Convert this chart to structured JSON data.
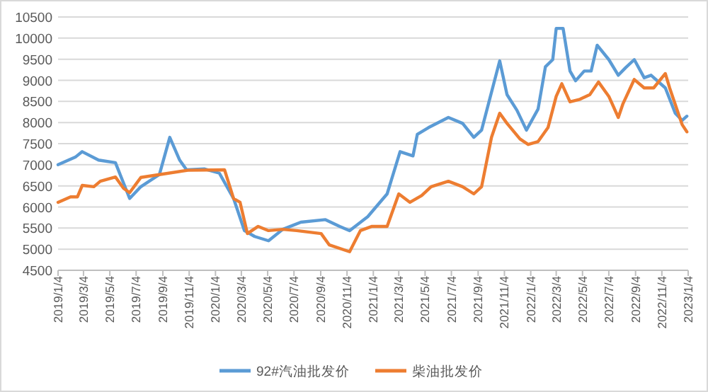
{
  "chart_data": {
    "type": "line",
    "x": [
      "2019-01-04",
      "2019-02-13",
      "2019-03-01",
      "2019-04-08",
      "2019-05-17",
      "2019-06-19",
      "2019-07-15",
      "2019-08-27",
      "2019-09-20",
      "2019-10-13",
      "2019-10-29",
      "2019-12-10",
      "2020-01-13",
      "2020-02-15",
      "2020-03-11",
      "2020-04-04",
      "2020-05-06",
      "2020-06-08",
      "2020-07-20",
      "2020-09-15",
      "2020-10-18",
      "2020-11-10",
      "2020-12-22",
      "2021-02-05",
      "2021-03-07",
      "2021-04-06",
      "2021-04-16",
      "2021-05-12",
      "2021-06-27",
      "2021-07-30",
      "2021-08-25",
      "2021-09-12",
      "2021-10-24",
      "2021-11-10",
      "2021-12-03",
      "2021-12-25",
      "2022-01-21",
      "2022-02-07",
      "2022-02-24",
      "2022-03-04",
      "2022-03-20",
      "2022-04-05",
      "2022-04-18",
      "2022-05-08",
      "2022-05-24",
      "2022-06-07",
      "2022-07-04",
      "2022-07-26",
      "2022-08-12",
      "2022-09-01",
      "2022-09-24",
      "2022-10-10",
      "2022-11-12",
      "2022-12-05",
      "2022-12-21",
      "2023-01-01"
    ],
    "series": [
      {
        "name": "92#汽油批发价",
        "color": "#5b9bd5",
        "values": [
          7000,
          7180,
          7310,
          7110,
          7050,
          6200,
          6480,
          6770,
          7650,
          7110,
          6880,
          6900,
          6800,
          6200,
          5440,
          5300,
          5200,
          5470,
          5640,
          5700,
          5540,
          5440,
          5770,
          6310,
          7310,
          7210,
          7720,
          7880,
          8120,
          7980,
          7650,
          7820,
          9460,
          8660,
          8290,
          7820,
          8320,
          9320,
          9490,
          10230,
          10230,
          9220,
          8990,
          9220,
          9220,
          9830,
          9490,
          9120,
          9300,
          9490,
          9060,
          9120,
          8820,
          8220,
          8050,
          8150
        ]
      },
      {
        "name": "柴油批发价",
        "color": "#ed7d31",
        "x": [
          "2019-01-04",
          "2019-02-02",
          "2019-02-18",
          "2019-03-01",
          "2019-03-28",
          "2019-04-12",
          "2019-05-17",
          "2019-06-05",
          "2019-06-19",
          "2019-07-15",
          "2019-11-01",
          "2020-01-25",
          "2020-02-15",
          "2020-03-01",
          "2020-03-18",
          "2020-04-12",
          "2020-05-06",
          "2020-06-08",
          "2020-07-10",
          "2020-09-05",
          "2020-09-24",
          "2020-11-10",
          "2020-12-05",
          "2021-01-01",
          "2021-02-05",
          "2021-03-04",
          "2021-03-30",
          "2021-04-26",
          "2021-05-18",
          "2021-06-27",
          "2021-07-30",
          "2021-08-25",
          "2021-09-12",
          "2021-10-05",
          "2021-10-24",
          "2021-11-10",
          "2021-12-10",
          "2021-12-29",
          "2022-01-21",
          "2022-02-13",
          "2022-03-04",
          "2022-03-17",
          "2022-04-05",
          "2022-04-28",
          "2022-05-21",
          "2022-06-10",
          "2022-07-04",
          "2022-07-26",
          "2022-08-06",
          "2022-09-01",
          "2022-09-24",
          "2022-10-16",
          "2022-11-12",
          "2022-11-22",
          "2022-12-21",
          "2023-01-01"
        ],
        "values": [
          6110,
          6240,
          6240,
          6510,
          6480,
          6610,
          6710,
          6440,
          6340,
          6700,
          6870,
          6880,
          6200,
          6110,
          5370,
          5540,
          5440,
          5470,
          5440,
          5370,
          5100,
          4940,
          5440,
          5540,
          5540,
          6310,
          6110,
          6270,
          6480,
          6610,
          6480,
          6310,
          6480,
          7650,
          8220,
          7980,
          7610,
          7480,
          7550,
          7880,
          8620,
          8920,
          8490,
          8550,
          8660,
          8960,
          8620,
          8120,
          8450,
          9020,
          8820,
          8820,
          9160,
          8820,
          7950,
          7780
        ]
      }
    ],
    "xlim": [
      "2019-01-04",
      "2023-01-04"
    ],
    "xticks": [
      {
        "value": "2019-01-04",
        "label": "2019/1/4"
      },
      {
        "value": "2019-03-04",
        "label": "2019/3/4"
      },
      {
        "value": "2019-05-04",
        "label": "2019/5/4"
      },
      {
        "value": "2019-07-04",
        "label": "2019/7/4"
      },
      {
        "value": "2019-09-04",
        "label": "2019/9/4"
      },
      {
        "value": "2019-11-04",
        "label": "2019/11/4"
      },
      {
        "value": "2020-01-04",
        "label": "2020/1/4"
      },
      {
        "value": "2020-03-04",
        "label": "2020/3/4"
      },
      {
        "value": "2020-05-04",
        "label": "2020/5/4"
      },
      {
        "value": "2020-07-04",
        "label": "2020/7/4"
      },
      {
        "value": "2020-09-04",
        "label": "2020/9/4"
      },
      {
        "value": "2020-11-04",
        "label": "2020/11/4"
      },
      {
        "value": "2021-01-04",
        "label": "2021/1/4"
      },
      {
        "value": "2021-03-04",
        "label": "2021/3/4"
      },
      {
        "value": "2021-05-04",
        "label": "2021/5/4"
      },
      {
        "value": "2021-07-04",
        "label": "2021/7/4"
      },
      {
        "value": "2021-09-04",
        "label": "2021/9/4"
      },
      {
        "value": "2021-11-04",
        "label": "2021/11/4"
      },
      {
        "value": "2022-01-04",
        "label": "2022/1/4"
      },
      {
        "value": "2022-03-04",
        "label": "2022/3/4"
      },
      {
        "value": "2022-05-04",
        "label": "2022/5/4"
      },
      {
        "value": "2022-07-04",
        "label": "2022/7/4"
      },
      {
        "value": "2022-09-04",
        "label": "2022/9/4"
      },
      {
        "value": "2022-11-04",
        "label": "2022/11/4"
      },
      {
        "value": "2023-01-04",
        "label": "2023/1/4"
      }
    ],
    "ylim": [
      4500,
      10500
    ],
    "yticks": [
      4500,
      5000,
      5500,
      6000,
      6500,
      7000,
      7500,
      8000,
      8500,
      9000,
      9500,
      10000,
      10500
    ],
    "grid": "y",
    "legend": "bottom"
  }
}
